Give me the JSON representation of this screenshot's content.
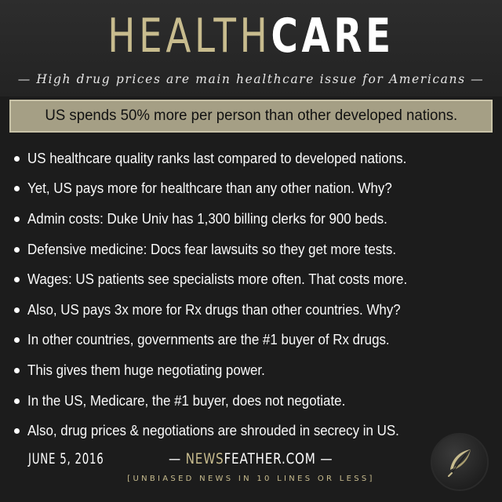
{
  "header": {
    "title_part1": "HEALTH",
    "title_part2": "CARE",
    "subtitle": "— High drug prices are main healthcare issue for Americans —"
  },
  "banner": {
    "text": "US spends 50% more per person than other developed nations."
  },
  "bullets": [
    "US healthcare quality ranks last compared to developed nations.",
    "Yet, US pays more for healthcare than any other nation. Why?",
    "Admin costs: Duke Univ has 1,300 billing clerks for 900 beds.",
    "Defensive medicine: Docs fear lawsuits so they get more tests.",
    "Wages: US patients see specialists more often. That costs more.",
    "Also, US pays 3x more for Rx drugs than other countries. Why?",
    "In other countries, governments are the #1 buyer of Rx drugs.",
    "This gives them huge negotiating power.",
    "In the US, Medicare, the #1 buyer, does not negotiate.",
    "Also, drug prices & negotiations are shrouded in secrecy in US."
  ],
  "footer": {
    "date": "JUNE 5, 2016",
    "site_prefix": "— ",
    "site_part1": "NEWS",
    "site_part2": "FEATHER.COM",
    "site_suffix": " —",
    "tagline": "[UNBIASED NEWS IN 10 LINES OR LESS]"
  },
  "logo": {
    "icon": "feather-icon"
  },
  "colors": {
    "gold": "#c8bc8e",
    "banner": "#a59f85",
    "background": "#1c1c1c"
  }
}
